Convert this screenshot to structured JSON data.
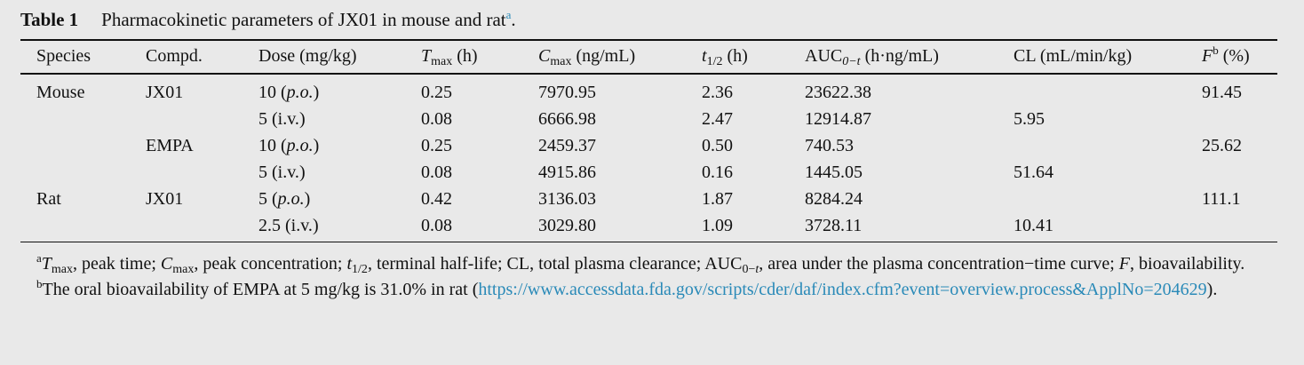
{
  "caption": {
    "label": "Table 1",
    "text": "Pharmacokinetic parameters of JX01 in mouse and rat",
    "footnote_mark": "a",
    "end": "."
  },
  "headers": [
    {
      "main": "Species",
      "sub": "",
      "unit": "",
      "italic": false
    },
    {
      "main": "Compd.",
      "sub": "",
      "unit": "",
      "italic": false
    },
    {
      "main": "Dose (mg/kg)",
      "sub": "",
      "unit": "",
      "italic": false
    },
    {
      "main": "T",
      "sub": "max",
      "unit": " (h)",
      "italic": true
    },
    {
      "main": "C",
      "sub": "max",
      "unit": " (ng/mL)",
      "italic": true
    },
    {
      "main": "t",
      "sub": "1/2",
      "unit": " (h)",
      "italic": true
    },
    {
      "main": "AUC",
      "sub": "0−t",
      "unit": " (h·ng/mL)",
      "italic": false
    },
    {
      "main": "CL (mL/min/kg)",
      "sub": "",
      "unit": "",
      "italic": false
    },
    {
      "main": "F",
      "sup": "b",
      "unit": " (%)",
      "italic": true
    }
  ],
  "rows": [
    {
      "species": "Mouse",
      "compd": "JX01",
      "dose": "10",
      "route": "p.o.",
      "route_italic": true,
      "tmax": "0.25",
      "cmax": "7970.95",
      "t_half": "2.36",
      "auc": "23622.38",
      "cl": "",
      "f": "91.45"
    },
    {
      "species": "",
      "compd": "",
      "dose": "5",
      "route": "i.v.",
      "route_italic": false,
      "tmax": "0.08",
      "cmax": "6666.98",
      "t_half": "2.47",
      "auc": "12914.87",
      "cl": "5.95",
      "f": ""
    },
    {
      "species": "",
      "compd": "EMPA",
      "dose": "10",
      "route": "p.o.",
      "route_italic": true,
      "tmax": "0.25",
      "cmax": "2459.37",
      "t_half": "0.50",
      "auc": "740.53",
      "cl": "",
      "f": "25.62"
    },
    {
      "species": "",
      "compd": "",
      "dose": "5",
      "route": "i.v.",
      "route_italic": false,
      "tmax": "0.08",
      "cmax": "4915.86",
      "t_half": "0.16",
      "auc": "1445.05",
      "cl": "51.64",
      "f": ""
    },
    {
      "species": "Rat",
      "compd": "JX01",
      "dose": "5",
      "route": "p.o.",
      "route_italic": true,
      "tmax": "0.42",
      "cmax": "3136.03",
      "t_half": "1.87",
      "auc": "8284.24",
      "cl": "",
      "f": "111.1"
    },
    {
      "species": "",
      "compd": "",
      "dose": "2.5",
      "route": "i.v.",
      "route_italic": false,
      "tmax": "0.08",
      "cmax": "3029.80",
      "t_half": "1.09",
      "auc": "3728.11",
      "cl": "10.41",
      "f": ""
    }
  ],
  "footnotes": {
    "a": {
      "mark": "a",
      "text_html": "<i>T</i><sub>max</sub>, peak time; <i>C</i><sub>max</sub>, peak concentration; <i>t</i><sub>1/2</sub>, terminal half-life; CL, total plasma clearance; AUC<sub>0−<i>t</i></sub>, area under the plasma concentration−time curve; <i>F</i>, bioavailability."
    },
    "b": {
      "mark": "b",
      "text": "The oral bioavailability of EMPA at 5 mg/kg is 31.0% in rat (",
      "link": "https://www.accessdata.fda.gov/scripts/cder/daf/index.cfm?event=overview.process&ApplNo=204629",
      "end": ")."
    }
  },
  "colors": {
    "background": "#e9e9e9",
    "link": "#2a8ab8",
    "text": "#111111"
  }
}
